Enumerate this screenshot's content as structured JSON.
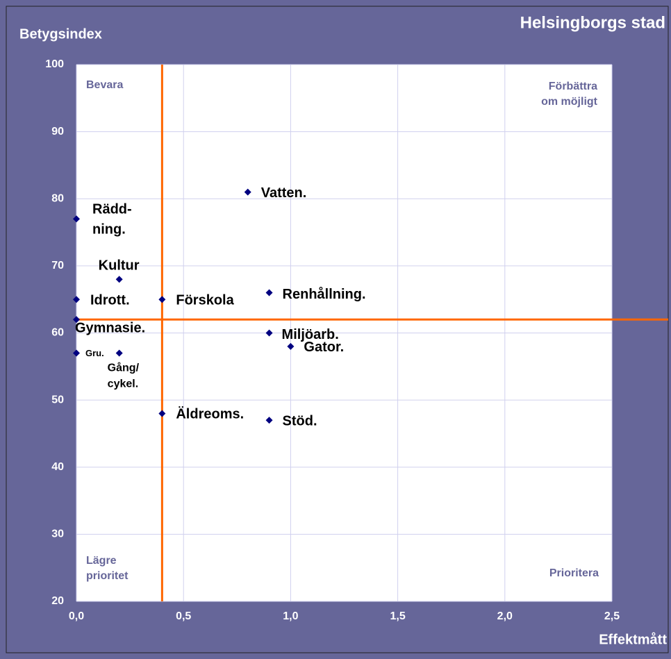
{
  "chart_data": {
    "type": "scatter",
    "title": "Helsingborgs stad",
    "ylabel": "Betygsindex",
    "xlabel": "Effektmått",
    "x": [
      0.8,
      0,
      0.2,
      0,
      0.4,
      0.9,
      0,
      0.9,
      1.0,
      0,
      0.2,
      0.4,
      0.9
    ],
    "values": [
      81,
      77,
      68,
      65,
      65,
      66,
      62,
      60,
      58,
      57,
      57,
      48,
      47
    ],
    "point_labels": [
      [
        "Vatten."
      ],
      [
        "Rädd-",
        "ning."
      ],
      [
        "Kultur"
      ],
      [
        "Idrott."
      ],
      [
        "Förskola"
      ],
      [
        "Renhållning."
      ],
      [
        "Gymnasie."
      ],
      [
        "Miljöarb."
      ],
      [
        "Gator."
      ],
      [
        "Gru."
      ],
      [
        "Gång/",
        "cykel."
      ],
      [
        "Äldreoms."
      ],
      [
        "Stöd."
      ]
    ],
    "color": "#000080",
    "reference_lines": {
      "x": 0.4,
      "y": 62,
      "color": "#ff6600"
    },
    "quadrant_labels": {
      "top_left": [
        "Bevara"
      ],
      "top_right": [
        "Förbättra",
        "om möjligt"
      ],
      "bottom_left": [
        "Lägre",
        "prioritet"
      ],
      "bottom_right": [
        "Prioritera"
      ]
    },
    "xlim": [
      0,
      2.5
    ],
    "xticks": [
      {
        "value": 0,
        "label": "0,0"
      },
      {
        "value": 0.5,
        "label": "0,5"
      },
      {
        "value": 1.0,
        "label": "1,0"
      },
      {
        "value": 1.5,
        "label": "1,5"
      },
      {
        "value": 2.0,
        "label": "2,0"
      },
      {
        "value": 2.5,
        "label": "2,5"
      }
    ],
    "ylim": [
      20,
      100
    ],
    "yticks": [
      20,
      30,
      40,
      50,
      60,
      70,
      80,
      90,
      100
    ],
    "grid": true
  }
}
